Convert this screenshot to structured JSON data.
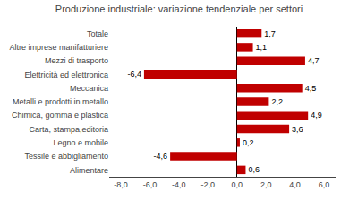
{
  "chart_data": {
    "type": "bar",
    "orientation": "horizontal",
    "title": "Produzione industriale: variazione tendenziale per settori",
    "categories": [
      "Alimentare",
      "Tessile e abbigliamento",
      "Legno e mobile",
      "Carta, stampa,editoria",
      "Chimica, gomma e plastica",
      "Metalli e prodotti in metallo",
      "Meccanica",
      "Elettricità ed elettronica",
      "Mezzi di trasporto",
      "Altre imprese manifatturiere",
      "Totale"
    ],
    "values": [
      0.6,
      -4.6,
      0.2,
      3.6,
      4.9,
      2.2,
      4.5,
      -6.4,
      4.7,
      1.1,
      1.7
    ],
    "value_labels": [
      "0,6",
      "-4,6",
      "0,2",
      "3,6",
      "4,9",
      "2,2",
      "4,5",
      "-6,4",
      "4,7",
      "1,1",
      "1,7"
    ],
    "data_labels": true,
    "color": "#c00000",
    "xlim": [
      -8.8,
      6.8
    ],
    "xticks": [
      {
        "value": -8.0,
        "label": "-8,0"
      },
      {
        "value": -6.0,
        "label": "-6,0"
      },
      {
        "value": -4.0,
        "label": "-4,0"
      },
      {
        "value": -2.0,
        "label": "-2,0"
      },
      {
        "value": 0.0,
        "label": "0,0"
      },
      {
        "value": 2.0,
        "label": "2,0"
      },
      {
        "value": 4.0,
        "label": "4,0"
      },
      {
        "value": 6.0,
        "label": "6,0"
      }
    ],
    "grid": false
  }
}
